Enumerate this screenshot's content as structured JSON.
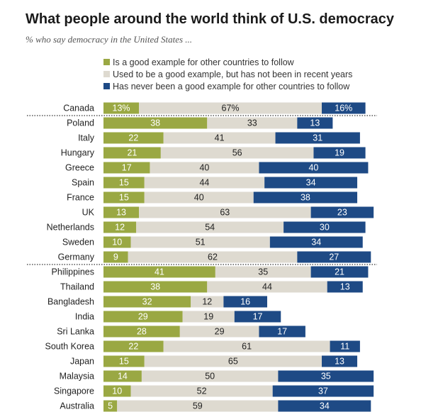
{
  "header": {
    "title": "What people around the world think of U.S. democracy",
    "subtitle": "% who say democracy in the United States ..."
  },
  "colors": {
    "good": "#9aa843",
    "used_to_be": "#dedad0",
    "never": "#1e4a85",
    "label_on_dark": "#ffffff",
    "label_on_light": "#222222"
  },
  "chart_data": {
    "type": "bar",
    "stacked": true,
    "orientation": "horizontal",
    "title": "What people around the world think of U.S. democracy",
    "subtitle": "% who say democracy in the United States ...",
    "categories": [
      "Canada",
      "Poland",
      "Italy",
      "Hungary",
      "Greece",
      "Spain",
      "France",
      "UK",
      "Netherlands",
      "Sweden",
      "Germany",
      "Philippines",
      "Thailand",
      "Bangladesh",
      "India",
      "Sri Lanka",
      "South Korea",
      "Japan",
      "Malaysia",
      "Singapore",
      "Australia"
    ],
    "series": [
      {
        "name": "Is a good example for other countries to follow",
        "values": [
          13,
          38,
          22,
          21,
          17,
          15,
          15,
          13,
          12,
          10,
          9,
          41,
          38,
          32,
          29,
          28,
          22,
          15,
          14,
          10,
          5
        ],
        "labels": [
          "13%",
          "38",
          "22",
          "21",
          "17",
          "15",
          "15",
          "13",
          "12",
          "10",
          "9",
          "41",
          "38",
          "32",
          "29",
          "28",
          "22",
          "15",
          "14",
          "10",
          "5"
        ]
      },
      {
        "name": "Used to be a good example, but has not been in recent years",
        "values": [
          67,
          33,
          41,
          56,
          40,
          44,
          40,
          63,
          54,
          51,
          62,
          35,
          44,
          12,
          19,
          29,
          61,
          65,
          50,
          52,
          59
        ],
        "labels": [
          "67%",
          "33",
          "41",
          "56",
          "40",
          "44",
          "40",
          "63",
          "54",
          "51",
          "62",
          "35",
          "44",
          "12",
          "19",
          "29",
          "61",
          "65",
          "50",
          "52",
          "59"
        ]
      },
      {
        "name": "Has never been a good example for other countries to follow",
        "values": [
          16,
          13,
          31,
          19,
          40,
          34,
          38,
          23,
          30,
          34,
          27,
          21,
          13,
          16,
          17,
          17,
          11,
          13,
          35,
          37,
          34
        ],
        "labels": [
          "16%",
          "13",
          "31",
          "19",
          "40",
          "34",
          "38",
          "23",
          "30",
          "34",
          "27",
          "21",
          "13",
          "16",
          "17",
          "17",
          "11",
          "13",
          "35",
          "37",
          "34"
        ]
      }
    ],
    "group_separators_after": [
      "Canada",
      "Germany"
    ],
    "legend_position": "top",
    "grid": false
  }
}
